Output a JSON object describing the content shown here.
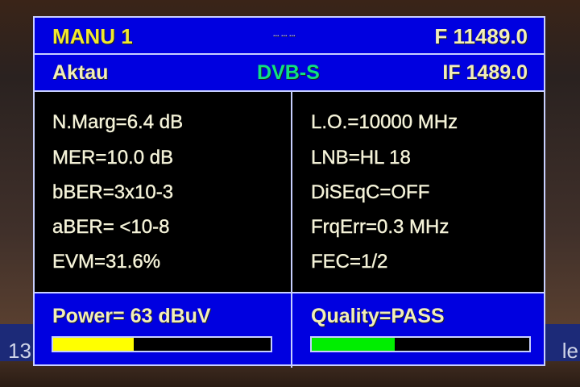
{
  "header": {
    "mode": "MANU 1",
    "indicator": "... ... ...",
    "frequency": "F 11489.0"
  },
  "subheader": {
    "satellite": "Aktau",
    "standard": "DVB-S",
    "if_freq": "IF 1489.0"
  },
  "left_params": [
    "N.Marg=6.4 dB",
    "MER=10.0 dB",
    "bBER=3x10-3",
    "aBER= <10-8",
    "EVM=31.6%"
  ],
  "right_params": [
    "L.O.=10000 MHz",
    "LNB=HL 18",
    "DiSEqC=OFF",
    "FrqErr=0.3 MHz",
    "FEC=1/2"
  ],
  "power": {
    "label": "Power=  63 dBuV",
    "level_percent": 37,
    "color": "#ffff00"
  },
  "quality": {
    "label": "Quality=PASS",
    "level_percent": 38,
    "color": "#00ee00"
  },
  "background_strip": {
    "left": "13",
    "right": "le"
  },
  "colors": {
    "panel": "#0000e0",
    "body": "#000000",
    "standard": "#10e080",
    "mode": "#f0e830"
  }
}
